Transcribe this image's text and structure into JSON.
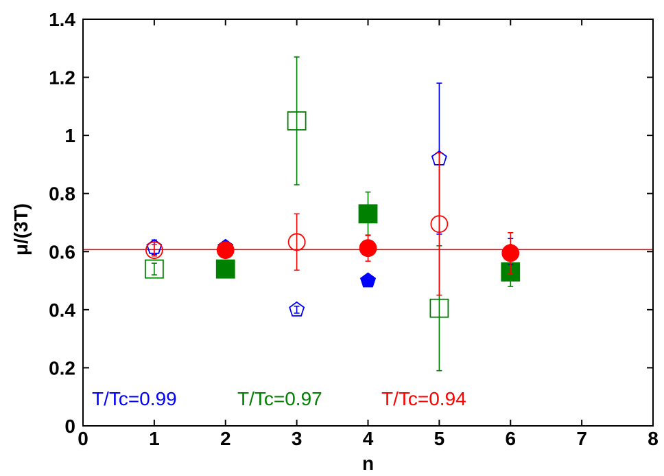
{
  "chart_data": {
    "type": "scatter",
    "title": "",
    "xlabel": "n",
    "ylabel": "μ/(3T)",
    "xlim": [
      0,
      8
    ],
    "ylim": [
      0,
      1.4
    ],
    "xticks": [
      "0",
      "1",
      "2",
      "3",
      "4",
      "5",
      "6",
      "7",
      "8"
    ],
    "yticks": [
      "0",
      "0.2",
      "0.4",
      "0.6",
      "0.8",
      "1",
      "1.2",
      "1.4"
    ],
    "grid": false,
    "reference_line": {
      "y": 0.607,
      "color": "#ff0000"
    },
    "series": [
      {
        "name": "T/Tc=0.99",
        "color": "#0000ff",
        "marker": "pentagon",
        "points": [
          {
            "x": 1,
            "y": 0.615,
            "err": 0.025,
            "filled": false
          },
          {
            "x": 2,
            "y": 0.615,
            "err": 0.02,
            "filled": true
          },
          {
            "x": 3,
            "y": 0.4,
            "err": 0.012,
            "filled": false
          },
          {
            "x": 4,
            "y": 0.5,
            "err": 0.0,
            "filled": true
          },
          {
            "x": 5,
            "y": 0.92,
            "err": 0.26,
            "filled": false
          },
          {
            "x": 6,
            "y": 0.6,
            "err": 0.045,
            "filled": true
          }
        ]
      },
      {
        "name": "T/Tc=0.97",
        "color": "#008000",
        "marker": "square",
        "points": [
          {
            "x": 1,
            "y": 0.54,
            "err": 0.02,
            "filled": false
          },
          {
            "x": 2,
            "y": 0.54,
            "err": 0.02,
            "filled": true
          },
          {
            "x": 3,
            "y": 1.05,
            "err": 0.22,
            "filled": false
          },
          {
            "x": 4,
            "y": 0.73,
            "err": 0.075,
            "filled": true
          },
          {
            "x": 5,
            "y": 0.405,
            "err": 0.215,
            "filled": false
          },
          {
            "x": 6,
            "y": 0.53,
            "err": 0.05,
            "filled": true
          }
        ]
      },
      {
        "name": "T/Tc=0.94",
        "color": "#ff0000",
        "marker": "circle",
        "points": [
          {
            "x": 1,
            "y": 0.605,
            "err": 0.02,
            "filled": false
          },
          {
            "x": 2,
            "y": 0.605,
            "err": 0.02,
            "filled": true
          },
          {
            "x": 3,
            "y": 0.633,
            "err": 0.097,
            "filled": false
          },
          {
            "x": 4,
            "y": 0.612,
            "err": 0.045,
            "filled": true
          },
          {
            "x": 5,
            "y": 0.695,
            "err": 0.245,
            "filled": false
          },
          {
            "x": 6,
            "y": 0.595,
            "err": 0.07,
            "filled": true
          }
        ]
      }
    ],
    "annotations": [
      {
        "text": "T/Tc=0.99",
        "color": "#0000ff"
      },
      {
        "text": "T/Tc=0.97",
        "color": "#008000"
      },
      {
        "text": "T/Tc=0.94",
        "color": "#ff0000"
      }
    ]
  }
}
